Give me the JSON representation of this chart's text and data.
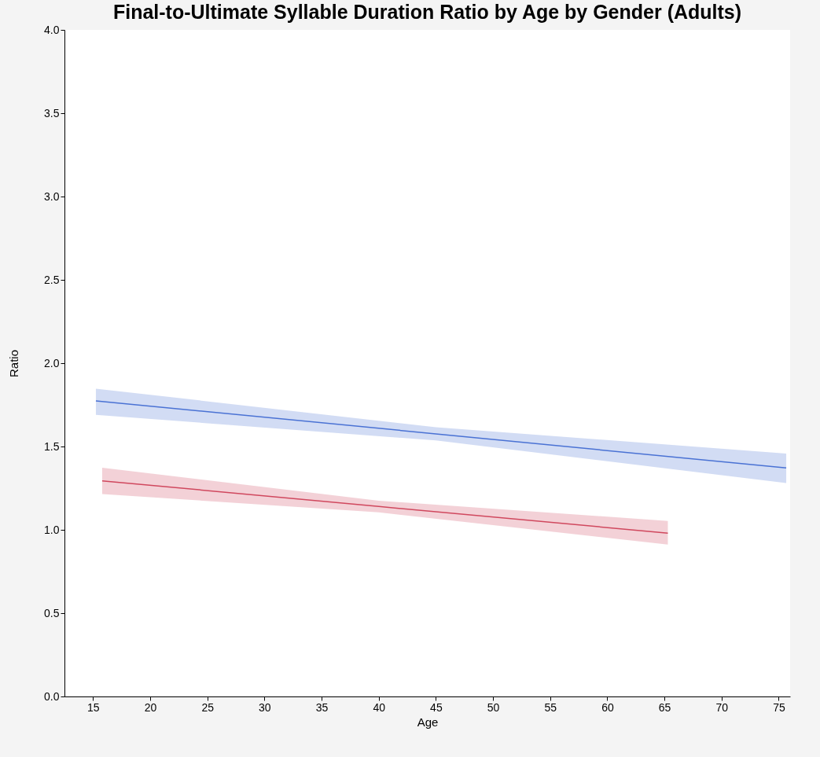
{
  "chart_data": {
    "type": "line",
    "title": "Final-to-Ultimate Syllable Duration Ratio by Age by Gender (Adults)",
    "xlabel": "Age",
    "ylabel": "Ratio",
    "series": [
      {
        "color": "#4a72d4",
        "x": [
          15.25,
          45,
          75.66
        ],
        "values": [
          1.774,
          1.576,
          1.371
        ],
        "lower": [
          1.69,
          1.536,
          1.281
        ],
        "upper": [
          1.847,
          1.616,
          1.458
        ]
      },
      {
        "color": "#d0485e",
        "x": [
          15.8,
          40,
          65.3
        ],
        "values": [
          1.294,
          1.14,
          0.98
        ],
        "lower": [
          1.215,
          1.105,
          0.912
        ],
        "upper": [
          1.373,
          1.175,
          1.053
        ]
      }
    ],
    "xlim": [
      12.5,
      76
    ],
    "xticks": [
      15,
      20,
      25,
      30,
      35,
      40,
      45,
      50,
      55,
      60,
      65,
      70,
      75
    ],
    "ylim": [
      0,
      4
    ],
    "yticks": [
      {
        "value": 0,
        "label": "0.0"
      },
      {
        "value": 0.5,
        "label": "0.5"
      },
      {
        "value": 1,
        "label": "1.0"
      },
      {
        "value": 1.5,
        "label": "1.5"
      },
      {
        "value": 2,
        "label": "2.0"
      },
      {
        "value": 2.5,
        "label": "2.5"
      },
      {
        "value": 3,
        "label": "3.0"
      },
      {
        "value": 3.5,
        "label": "3.5"
      },
      {
        "value": 4,
        "label": "4.0"
      }
    ],
    "grid": false,
    "legend": false,
    "marker": "none",
    "line_style": "solid"
  }
}
